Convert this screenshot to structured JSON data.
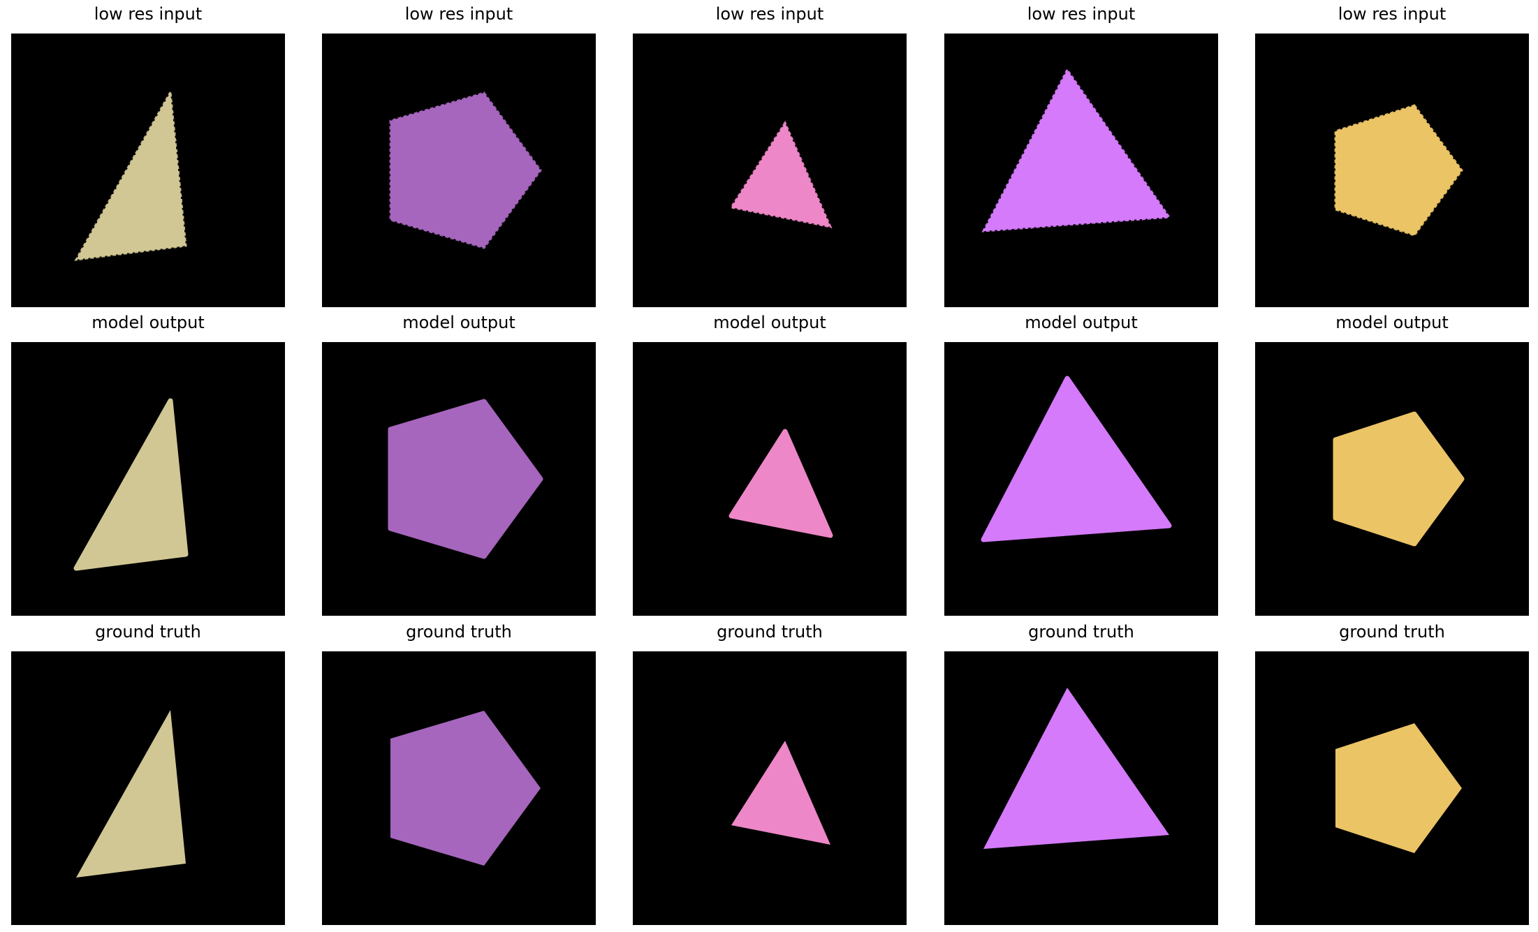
{
  "rows": [
    {
      "row_label": "low res input",
      "style": "pixelated"
    },
    {
      "row_label": "model output",
      "style": "soft"
    },
    {
      "row_label": "ground truth",
      "style": "sharp"
    }
  ],
  "columns": [
    {
      "shape": "triangle",
      "color": "#d1c794"
    },
    {
      "shape": "pentagon",
      "color": "#a666bd"
    },
    {
      "shape": "triangle",
      "color": "#ed87c7"
    },
    {
      "shape": "triangle",
      "color": "#d47afa"
    },
    {
      "shape": "pentagon",
      "color": "#ebc466"
    }
  ]
}
